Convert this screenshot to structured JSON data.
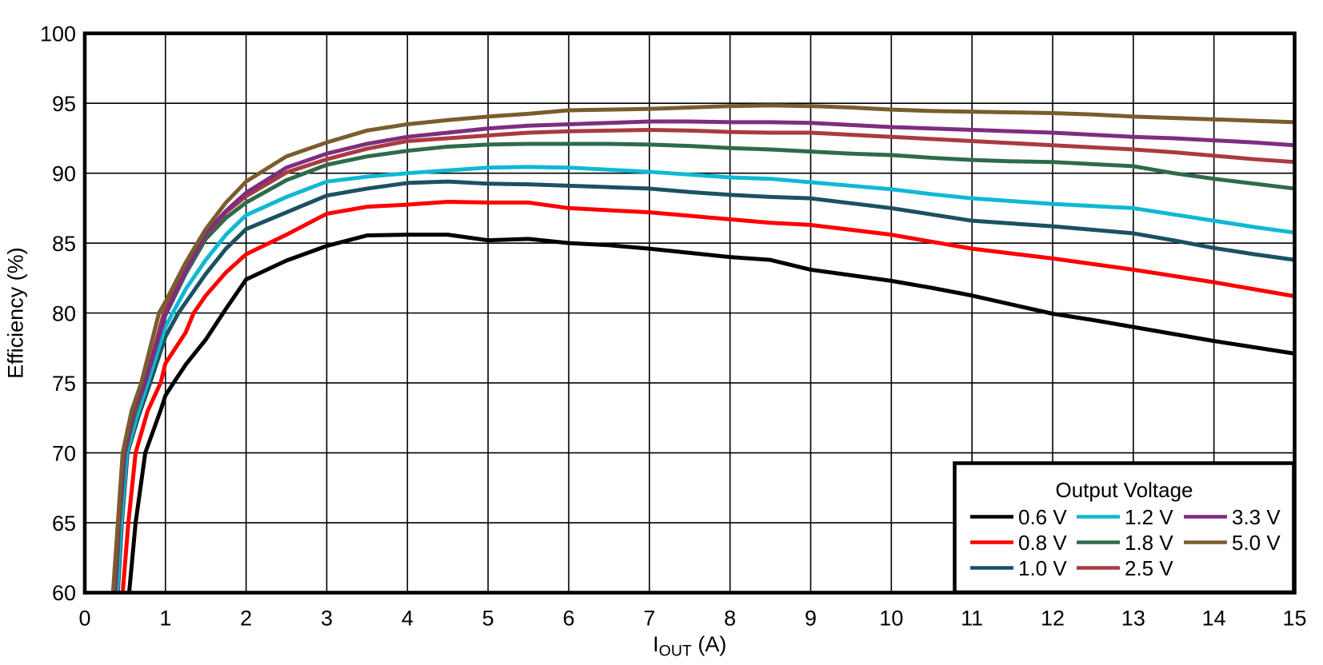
{
  "chart_data": {
    "type": "line",
    "title": "",
    "xlabel": {
      "base": "I",
      "sub": "OUT",
      "rest": " (A)"
    },
    "ylabel": "Efficiency (%)",
    "xlim": [
      0,
      15
    ],
    "ylim": [
      60,
      100
    ],
    "xticks": [
      0,
      1,
      2,
      3,
      4,
      5,
      6,
      7,
      8,
      9,
      10,
      11,
      12,
      13,
      14,
      15
    ],
    "yticks": [
      60,
      65,
      70,
      75,
      80,
      85,
      90,
      95,
      100
    ],
    "grid": true,
    "background_color": "#ffffff",
    "axis_color": "#000000",
    "grid_color": "#000000",
    "legend": {
      "title": "Output Voltage",
      "position": "bottom-right",
      "columns": 3,
      "rows_per_column": 3
    },
    "series": [
      {
        "name": "0.6 V",
        "color": "#000000",
        "points": [
          [
            0.55,
            60
          ],
          [
            0.63,
            65
          ],
          [
            0.75,
            70
          ],
          [
            0.95,
            73.2
          ],
          [
            1.0,
            74.1
          ],
          [
            1.1,
            75
          ],
          [
            1.25,
            76.3
          ],
          [
            1.5,
            78.1
          ],
          [
            1.75,
            80.3
          ],
          [
            2.0,
            82.4
          ],
          [
            2.5,
            83.75
          ],
          [
            3.0,
            84.8
          ],
          [
            3.5,
            85.55
          ],
          [
            4.0,
            85.6
          ],
          [
            4.5,
            85.6
          ],
          [
            5.0,
            85.2
          ],
          [
            5.5,
            85.3
          ],
          [
            6.0,
            85.0
          ],
          [
            6.5,
            84.85
          ],
          [
            7.0,
            84.6
          ],
          [
            7.5,
            84.3
          ],
          [
            8.0,
            84.0
          ],
          [
            8.5,
            83.8
          ],
          [
            9.0,
            83.1
          ],
          [
            9.5,
            82.7
          ],
          [
            10.0,
            82.3
          ],
          [
            10.5,
            81.8
          ],
          [
            11.0,
            81.25
          ],
          [
            11.5,
            80.6
          ],
          [
            12.0,
            79.95
          ],
          [
            12.5,
            79.5
          ],
          [
            13.0,
            79.0
          ],
          [
            13.5,
            78.5
          ],
          [
            14.0,
            78.0
          ],
          [
            14.5,
            77.55
          ],
          [
            15.0,
            77.1
          ]
        ]
      },
      {
        "name": "0.8 V",
        "color": "#ff0000",
        "points": [
          [
            0.47,
            60
          ],
          [
            0.54,
            65
          ],
          [
            0.63,
            70
          ],
          [
            0.78,
            73
          ],
          [
            0.94,
            75
          ],
          [
            1.0,
            76.4
          ],
          [
            1.25,
            78.6
          ],
          [
            1.35,
            80
          ],
          [
            1.5,
            81.25
          ],
          [
            1.75,
            82.9
          ],
          [
            2.0,
            84.2
          ],
          [
            2.5,
            85.6
          ],
          [
            3.0,
            87.1
          ],
          [
            3.5,
            87.6
          ],
          [
            4.0,
            87.75
          ],
          [
            4.5,
            87.95
          ],
          [
            5.0,
            87.9
          ],
          [
            5.5,
            87.9
          ],
          [
            6.0,
            87.5
          ],
          [
            6.5,
            87.35
          ],
          [
            7.0,
            87.2
          ],
          [
            7.5,
            86.95
          ],
          [
            8.0,
            86.7
          ],
          [
            8.5,
            86.45
          ],
          [
            9.0,
            86.3
          ],
          [
            9.5,
            85.95
          ],
          [
            10.0,
            85.6
          ],
          [
            10.5,
            85.1
          ],
          [
            11.0,
            84.6
          ],
          [
            11.5,
            84.25
          ],
          [
            12.0,
            83.9
          ],
          [
            12.5,
            83.5
          ],
          [
            13.0,
            83.1
          ],
          [
            13.5,
            82.65
          ],
          [
            14.0,
            82.2
          ],
          [
            14.5,
            81.7
          ],
          [
            15.0,
            81.2
          ]
        ]
      },
      {
        "name": "1.0 V",
        "color": "#1b5162",
        "points": [
          [
            0.41,
            60
          ],
          [
            0.46,
            65
          ],
          [
            0.53,
            70
          ],
          [
            0.66,
            72.5
          ],
          [
            0.81,
            75
          ],
          [
            1.0,
            78.3
          ],
          [
            1.16,
            80
          ],
          [
            1.5,
            82.8
          ],
          [
            1.75,
            84.6
          ],
          [
            2.0,
            86.0
          ],
          [
            2.5,
            87.2
          ],
          [
            3.0,
            88.4
          ],
          [
            3.5,
            88.9
          ],
          [
            4.0,
            89.3
          ],
          [
            4.5,
            89.4
          ],
          [
            5.0,
            89.25
          ],
          [
            5.5,
            89.2
          ],
          [
            6.0,
            89.1
          ],
          [
            6.5,
            89.0
          ],
          [
            7.0,
            88.9
          ],
          [
            7.5,
            88.65
          ],
          [
            8.0,
            88.45
          ],
          [
            8.5,
            88.3
          ],
          [
            9.0,
            88.2
          ],
          [
            9.5,
            87.85
          ],
          [
            10.0,
            87.5
          ],
          [
            10.5,
            87.05
          ],
          [
            11.0,
            86.6
          ],
          [
            11.5,
            86.4
          ],
          [
            12.0,
            86.2
          ],
          [
            12.5,
            85.95
          ],
          [
            13.0,
            85.7
          ],
          [
            13.5,
            85.2
          ],
          [
            14.0,
            84.65
          ],
          [
            14.5,
            84.2
          ],
          [
            15.0,
            83.8
          ]
        ]
      },
      {
        "name": "1.2 V",
        "color": "#0fb8d3",
        "points": [
          [
            0.4,
            60
          ],
          [
            0.45,
            65
          ],
          [
            0.52,
            70
          ],
          [
            0.64,
            72.5
          ],
          [
            0.78,
            75
          ],
          [
            1.0,
            79.0
          ],
          [
            1.09,
            80
          ],
          [
            1.25,
            81.7
          ],
          [
            1.5,
            83.8
          ],
          [
            1.75,
            85.6
          ],
          [
            2.0,
            87.0
          ],
          [
            2.5,
            88.3
          ],
          [
            3.0,
            89.4
          ],
          [
            3.5,
            89.75
          ],
          [
            4.0,
            90.0
          ],
          [
            4.5,
            90.2
          ],
          [
            5.0,
            90.4
          ],
          [
            5.5,
            90.45
          ],
          [
            6.0,
            90.4
          ],
          [
            6.5,
            90.25
          ],
          [
            7.0,
            90.1
          ],
          [
            7.5,
            89.9
          ],
          [
            8.0,
            89.7
          ],
          [
            8.5,
            89.6
          ],
          [
            9.0,
            89.35
          ],
          [
            9.5,
            89.1
          ],
          [
            10.0,
            88.85
          ],
          [
            10.5,
            88.5
          ],
          [
            11.0,
            88.2
          ],
          [
            11.5,
            88.0
          ],
          [
            12.0,
            87.8
          ],
          [
            12.5,
            87.65
          ],
          [
            13.0,
            87.5
          ],
          [
            13.5,
            87.05
          ],
          [
            14.0,
            86.6
          ],
          [
            14.5,
            86.15
          ],
          [
            15.0,
            85.75
          ]
        ]
      },
      {
        "name": "1.8 V",
        "color": "#2e6b4b",
        "points": [
          [
            0.38,
            60
          ],
          [
            0.43,
            65
          ],
          [
            0.5,
            70
          ],
          [
            0.62,
            72.8
          ],
          [
            0.75,
            75
          ],
          [
            1.0,
            79.85
          ],
          [
            1.25,
            82.8
          ],
          [
            1.5,
            85.3
          ],
          [
            1.75,
            86.8
          ],
          [
            2.0,
            87.9
          ],
          [
            2.5,
            89.5
          ],
          [
            3.0,
            90.6
          ],
          [
            3.5,
            91.2
          ],
          [
            4.0,
            91.6
          ],
          [
            4.5,
            91.9
          ],
          [
            5.0,
            92.05
          ],
          [
            5.5,
            92.1
          ],
          [
            6.0,
            92.1
          ],
          [
            6.5,
            92.1
          ],
          [
            7.0,
            92.05
          ],
          [
            7.5,
            91.95
          ],
          [
            8.0,
            91.8
          ],
          [
            8.5,
            91.7
          ],
          [
            9.0,
            91.55
          ],
          [
            9.5,
            91.4
          ],
          [
            10.0,
            91.3
          ],
          [
            10.5,
            91.1
          ],
          [
            11.0,
            90.95
          ],
          [
            11.5,
            90.85
          ],
          [
            12.0,
            90.8
          ],
          [
            12.5,
            90.65
          ],
          [
            13.0,
            90.5
          ],
          [
            13.5,
            90.0
          ],
          [
            14.0,
            89.6
          ],
          [
            14.5,
            89.25
          ],
          [
            15.0,
            88.9
          ]
        ]
      },
      {
        "name": "2.5 V",
        "color": "#a93b40",
        "points": [
          [
            0.37,
            60
          ],
          [
            0.42,
            65
          ],
          [
            0.49,
            70
          ],
          [
            0.6,
            72.8
          ],
          [
            0.745,
            75
          ],
          [
            0.98,
            80
          ],
          [
            1.25,
            83.2
          ],
          [
            1.5,
            85.6
          ],
          [
            1.75,
            87.2
          ],
          [
            2.0,
            88.35
          ],
          [
            2.5,
            90.05
          ],
          [
            3.0,
            91.0
          ],
          [
            3.5,
            91.75
          ],
          [
            4.0,
            92.3
          ],
          [
            4.5,
            92.5
          ],
          [
            5.0,
            92.7
          ],
          [
            5.5,
            92.9
          ],
          [
            6.0,
            93.0
          ],
          [
            6.5,
            93.05
          ],
          [
            7.0,
            93.1
          ],
          [
            7.5,
            93.05
          ],
          [
            8.0,
            92.95
          ],
          [
            8.5,
            92.9
          ],
          [
            9.0,
            92.9
          ],
          [
            9.5,
            92.75
          ],
          [
            10.0,
            92.6
          ],
          [
            10.5,
            92.45
          ],
          [
            11.0,
            92.3
          ],
          [
            11.5,
            92.15
          ],
          [
            12.0,
            92.0
          ],
          [
            12.5,
            91.85
          ],
          [
            13.0,
            91.7
          ],
          [
            13.5,
            91.5
          ],
          [
            14.0,
            91.25
          ],
          [
            14.5,
            91.0
          ],
          [
            15.0,
            90.8
          ]
        ]
      },
      {
        "name": "3.3 V",
        "color": "#7e2d80",
        "points": [
          [
            0.37,
            60
          ],
          [
            0.42,
            65
          ],
          [
            0.49,
            70
          ],
          [
            0.6,
            73
          ],
          [
            0.745,
            75
          ],
          [
            1.0,
            79.9
          ],
          [
            1.25,
            83.0
          ],
          [
            1.5,
            85.7
          ],
          [
            1.75,
            87.3
          ],
          [
            2.0,
            88.6
          ],
          [
            2.5,
            90.4
          ],
          [
            3.0,
            91.4
          ],
          [
            3.5,
            92.1
          ],
          [
            4.0,
            92.6
          ],
          [
            4.5,
            92.9
          ],
          [
            5.0,
            93.2
          ],
          [
            5.5,
            93.4
          ],
          [
            6.0,
            93.5
          ],
          [
            6.5,
            93.6
          ],
          [
            7.0,
            93.7
          ],
          [
            7.5,
            93.7
          ],
          [
            8.0,
            93.65
          ],
          [
            8.5,
            93.65
          ],
          [
            9.0,
            93.6
          ],
          [
            9.5,
            93.45
          ],
          [
            10.0,
            93.3
          ],
          [
            10.5,
            93.2
          ],
          [
            11.0,
            93.1
          ],
          [
            11.5,
            93.0
          ],
          [
            12.0,
            92.9
          ],
          [
            12.5,
            92.75
          ],
          [
            13.0,
            92.6
          ],
          [
            13.5,
            92.5
          ],
          [
            14.0,
            92.35
          ],
          [
            14.5,
            92.2
          ],
          [
            15.0,
            92.0
          ]
        ]
      },
      {
        "name": "5.0 V",
        "color": "#7b5c2d",
        "points": [
          [
            0.35,
            60
          ],
          [
            0.41,
            65
          ],
          [
            0.47,
            70
          ],
          [
            0.58,
            73
          ],
          [
            0.7,
            75
          ],
          [
            0.92,
            80
          ],
          [
            1.0,
            80.8
          ],
          [
            1.25,
            83.6
          ],
          [
            1.5,
            86.0
          ],
          [
            1.75,
            87.9
          ],
          [
            2.0,
            89.4
          ],
          [
            2.5,
            91.2
          ],
          [
            3.0,
            92.2
          ],
          [
            3.5,
            93.05
          ],
          [
            4.0,
            93.5
          ],
          [
            4.5,
            93.8
          ],
          [
            5.0,
            94.05
          ],
          [
            5.5,
            94.25
          ],
          [
            6.0,
            94.5
          ],
          [
            6.5,
            94.55
          ],
          [
            7.0,
            94.6
          ],
          [
            7.5,
            94.7
          ],
          [
            8.0,
            94.8
          ],
          [
            8.5,
            94.85
          ],
          [
            9.0,
            94.8
          ],
          [
            9.5,
            94.7
          ],
          [
            10.0,
            94.55
          ],
          [
            10.5,
            94.45
          ],
          [
            11.0,
            94.4
          ],
          [
            11.5,
            94.35
          ],
          [
            12.0,
            94.3
          ],
          [
            12.5,
            94.2
          ],
          [
            13.0,
            94.05
          ],
          [
            13.5,
            93.95
          ],
          [
            14.0,
            93.85
          ],
          [
            14.5,
            93.75
          ],
          [
            15.0,
            93.65
          ]
        ]
      }
    ]
  }
}
